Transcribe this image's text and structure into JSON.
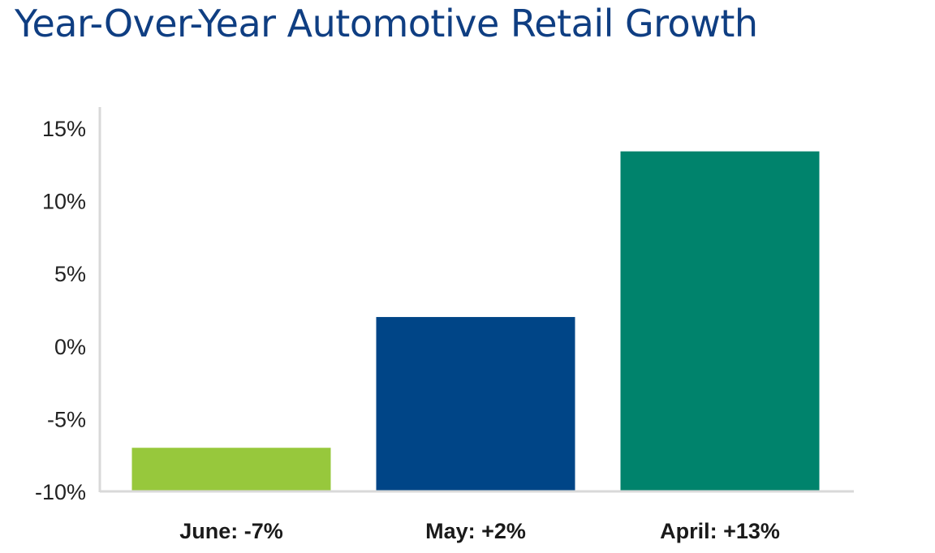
{
  "chart_data": {
    "type": "bar",
    "title": "Year-Over-Year Automotive Retail Growth",
    "categories": [
      "June: -7%",
      "May: +2%",
      "April: +13%"
    ],
    "values": [
      -7,
      2,
      13.4
    ],
    "colors": [
      "#97c83c",
      "#004587",
      "#00836c"
    ],
    "ylim": [
      -10,
      15
    ],
    "yticks": [
      15,
      10,
      5,
      0,
      -5,
      -10
    ],
    "ytick_labels": [
      "15%",
      "10%",
      "5%",
      "0%",
      "-5%",
      "-10%"
    ],
    "xlabel": "",
    "ylabel": "",
    "grid": false,
    "legend": "none",
    "axis_color": "#d9d9d9"
  }
}
